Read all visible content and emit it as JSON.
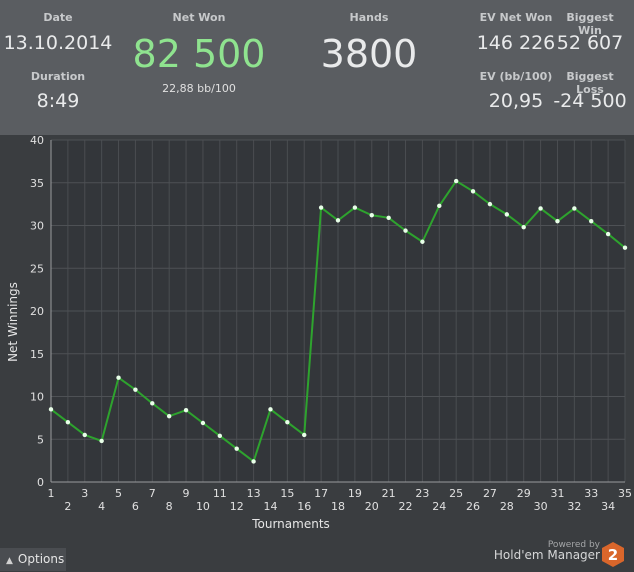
{
  "stats": {
    "date_label": "Date",
    "date_value": "13.10.2014",
    "duration_label": "Duration",
    "duration_value": "8:49",
    "netwon_label": "Net Won",
    "netwon_value": "82 500",
    "netwon_sub": "22,88 bb/100",
    "hands_label": "Hands",
    "hands_value": "3800",
    "evnet_label": "EV Net Won",
    "evnet_value": "146 226",
    "evbb_label": "EV (bb/100)",
    "evbb_value": "20,95",
    "bigwin_label": "Biggest Win",
    "bigwin_value": "52 607",
    "bigloss_label": "Biggest Loss",
    "bigloss_value": "-24 500"
  },
  "colors": {
    "accent_green": "#8fe38f",
    "line": "#2ea32e",
    "point": "#e8ffe8"
  },
  "footer": {
    "options_label": "Options",
    "powered_label": "Powered by",
    "brand_label": "Hold'em Manager",
    "logo_number": "2",
    "logo_color": "#d9662b"
  },
  "chart_data": {
    "type": "line",
    "xlabel": "Tournaments",
    "ylabel": "Net Winnings",
    "xlim": [
      1,
      35
    ],
    "ylim": [
      0,
      40
    ],
    "yticks": [
      0,
      5,
      10,
      15,
      20,
      25,
      30,
      35,
      40
    ],
    "grid": true,
    "x": [
      1,
      2,
      3,
      4,
      5,
      6,
      7,
      8,
      9,
      10,
      11,
      12,
      13,
      14,
      15,
      16,
      17,
      18,
      19,
      20,
      21,
      22,
      23,
      24,
      25,
      26,
      27,
      28,
      29,
      30,
      31,
      32,
      33,
      34,
      35
    ],
    "values": [
      8.5,
      7.0,
      5.5,
      4.8,
      12.2,
      10.8,
      9.2,
      7.7,
      8.4,
      6.9,
      5.4,
      3.9,
      2.4,
      8.5,
      7.0,
      5.5,
      32.1,
      30.6,
      32.1,
      31.2,
      30.9,
      29.4,
      28.1,
      32.3,
      35.2,
      34.0,
      32.5,
      31.3,
      29.8,
      32.0,
      30.5,
      32.0,
      30.5,
      29.0,
      27.4
    ]
  }
}
